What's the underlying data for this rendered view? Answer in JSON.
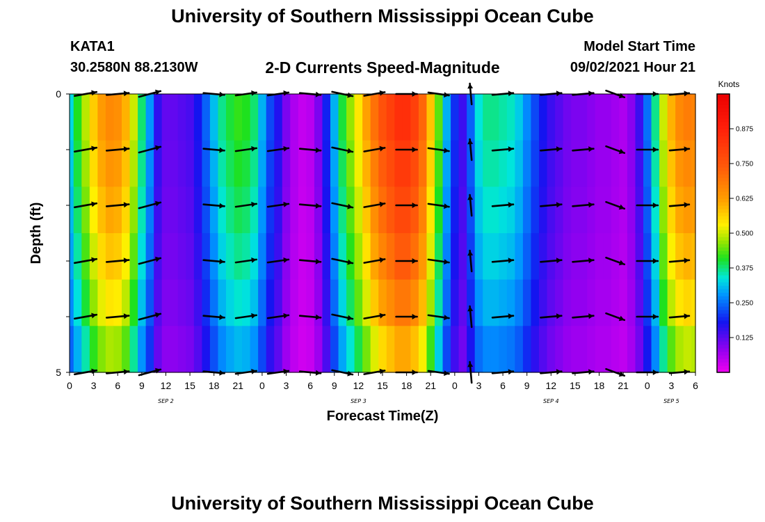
{
  "header": {
    "title": "University of Southern Mississippi Ocean Cube",
    "footer_title": "University of Southern Mississippi Ocean Cube",
    "station": "KATA1",
    "coords": "30.2580N  88.2130W",
    "model_label": "Model Start Time",
    "model_time": "09/02/2021 Hour 21"
  },
  "chart_data": {
    "type": "heatmap",
    "title": "2-D Currents Speed-Magnitude",
    "xlabel": "Forecast Time(Z)",
    "ylabel": "Depth (ft)",
    "units": "Knots",
    "y_range": [
      0,
      5
    ],
    "y_tick_labels": [
      "0",
      "5"
    ],
    "x_hours_start": 0,
    "x_hours_end": 78,
    "x_tick_labels": [
      "0",
      "3",
      "6",
      "9",
      "12",
      "15",
      "18",
      "21",
      "0",
      "3",
      "6",
      "9",
      "12",
      "15",
      "18",
      "21",
      "0",
      "3",
      "6",
      "9",
      "12",
      "15",
      "18",
      "21",
      "0",
      "3",
      "6"
    ],
    "day_labels": [
      {
        "text": "SEP 2",
        "hour": 12
      },
      {
        "text": "SEP 3",
        "hour": 36
      },
      {
        "text": "SEP 4",
        "hour": 60
      },
      {
        "text": "SEP 5",
        "hour": 75
      }
    ],
    "colorbar": {
      "min": 0.0,
      "max": 1.0,
      "tick_values": [
        0.125,
        0.25,
        0.375,
        0.5,
        0.625,
        0.75,
        0.875
      ],
      "tick_labels": [
        "0.125",
        "0.250",
        "0.375",
        "0.500",
        "0.625",
        "0.750",
        "0.875"
      ]
    },
    "depth_rows": 5,
    "hours": [
      0,
      1,
      2,
      3,
      4,
      5,
      6,
      7,
      8,
      9,
      10,
      11,
      12,
      13,
      14,
      15,
      16,
      17,
      18,
      19,
      20,
      21,
      22,
      23,
      24,
      25,
      26,
      27,
      28,
      29,
      30,
      31,
      32,
      33,
      34,
      35,
      36,
      37,
      38,
      39,
      40,
      41,
      42,
      43,
      44,
      45,
      46,
      47,
      48,
      49,
      50,
      51,
      52,
      53,
      54,
      55,
      56,
      57,
      58,
      59,
      60,
      61,
      62,
      63,
      64,
      65,
      66,
      67,
      68,
      69,
      70,
      71,
      72,
      73,
      74,
      75,
      76,
      77,
      78
    ],
    "speed_profile": [
      0.33,
      0.41,
      0.49,
      0.57,
      0.63,
      0.66,
      0.65,
      0.6,
      0.5,
      0.38,
      0.28,
      0.16,
      0.12,
      0.12,
      0.13,
      0.14,
      0.18,
      0.24,
      0.31,
      0.37,
      0.4,
      0.42,
      0.41,
      0.38,
      0.3,
      0.22,
      0.17,
      0.1,
      0.06,
      0.04,
      0.05,
      0.1,
      0.19,
      0.3,
      0.4,
      0.47,
      0.54,
      0.62,
      0.7,
      0.76,
      0.8,
      0.84,
      0.84,
      0.8,
      0.72,
      0.58,
      0.44,
      0.3,
      0.2,
      0.15,
      0.24,
      0.34,
      0.37,
      0.37,
      0.36,
      0.35,
      0.32,
      0.27,
      0.22,
      0.18,
      0.15,
      0.13,
      0.11,
      0.1,
      0.1,
      0.09,
      0.08,
      0.08,
      0.07,
      0.06,
      0.09,
      0.15,
      0.25,
      0.37,
      0.5,
      0.6,
      0.66,
      0.68,
      0.67
    ],
    "depth_factors": [
      1.0,
      0.97,
      0.93,
      0.88,
      0.82,
      0.73
    ],
    "arrow_hours": [
      2,
      6,
      10,
      18,
      22,
      26,
      30,
      34,
      38,
      42,
      46,
      50,
      54,
      60,
      64,
      68,
      72,
      76
    ],
    "arrow_angles_deg": [
      10,
      5,
      15,
      -5,
      8,
      8,
      -5,
      -12,
      10,
      0,
      -8,
      95,
      5,
      5,
      5,
      -20,
      0,
      5
    ],
    "arrow_lengths": [
      32,
      32,
      32,
      30,
      30,
      30,
      30,
      30,
      30,
      30,
      30,
      30,
      30,
      30,
      30,
      28,
      30,
      28
    ]
  }
}
